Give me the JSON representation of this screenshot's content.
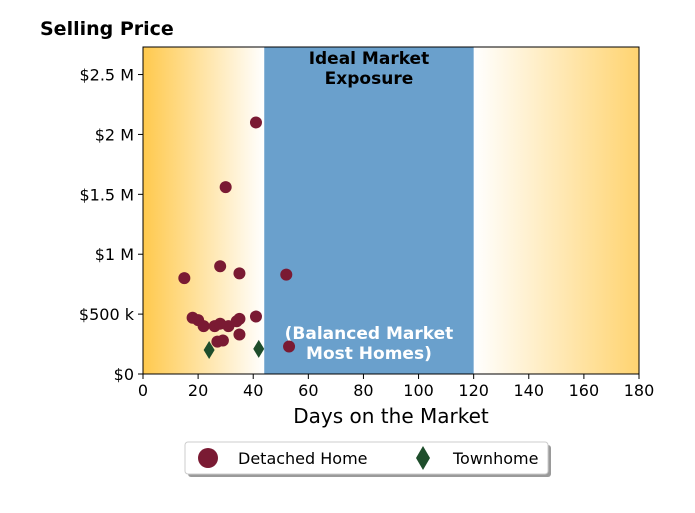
{
  "chart_data": {
    "type": "scatter",
    "title": "Selling Price",
    "xlabel": "Days on the Market",
    "ylabel": "",
    "xlim": [
      0,
      180
    ],
    "ylim": [
      0,
      2730000
    ],
    "x_ticks": [
      0,
      20,
      40,
      60,
      80,
      100,
      120,
      140,
      160,
      180
    ],
    "x_tick_labels": [
      "0",
      "20",
      "40",
      "60",
      "80",
      "100",
      "120",
      "140",
      "160",
      "180"
    ],
    "y_ticks": [
      0,
      500000,
      1000000,
      1500000,
      2000000,
      2500000
    ],
    "y_tick_labels": [
      "$0",
      "$500 k",
      "$1 M",
      "$1.5 M",
      "$2 M",
      "$2.5 M"
    ],
    "grid": false,
    "legend_placement": "bottom-center",
    "bands": [
      {
        "x_range": [
          44,
          120
        ],
        "color": "#6aa0cc",
        "labels": [
          "Ideal Market",
          "Exposure"
        ],
        "label_color": "#000000"
      },
      {
        "x_range": [
          44,
          120
        ],
        "color": "#6aa0cc",
        "labels": [
          "(Balanced Market",
          "Most Homes)"
        ],
        "label_color": "#ffffff"
      }
    ],
    "gradient_color": "#ffc94d",
    "series": [
      {
        "name": "Detached Home",
        "marker": "circle",
        "color": "#7a1a33",
        "points": [
          [
            15,
            800000
          ],
          [
            18,
            470000
          ],
          [
            20,
            450000
          ],
          [
            22,
            400000
          ],
          [
            26,
            400000
          ],
          [
            28,
            420000
          ],
          [
            27,
            270000
          ],
          [
            29,
            280000
          ],
          [
            31,
            400000
          ],
          [
            34,
            440000
          ],
          [
            35,
            460000
          ],
          [
            35,
            330000
          ],
          [
            28,
            900000
          ],
          [
            35,
            840000
          ],
          [
            30,
            1560000
          ],
          [
            41,
            2100000
          ],
          [
            41,
            480000
          ],
          [
            52,
            830000
          ],
          [
            53,
            230000
          ]
        ]
      },
      {
        "name": "Townhome",
        "marker": "diamond",
        "color": "#1e4d2b",
        "points": [
          [
            24,
            200000
          ],
          [
            42,
            210000
          ]
        ]
      }
    ]
  }
}
